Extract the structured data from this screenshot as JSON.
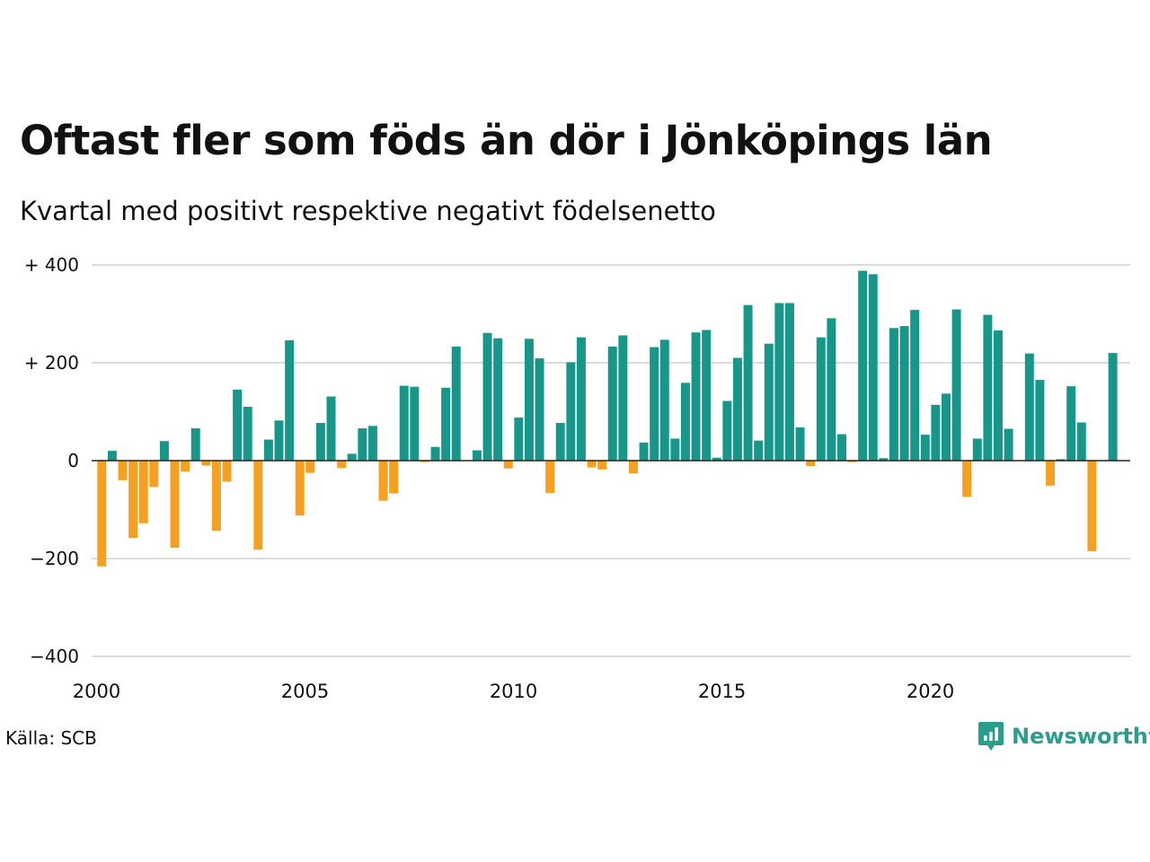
{
  "title": "Oftast fler som föds än dör i Jönköpings län",
  "subtitle": "Kvartal med positivt respektive negativt födelsenetto",
  "source": "Källa: SCB",
  "brand": {
    "name": "Newsworthy",
    "icon": "newsworthy-logo-icon",
    "color": "#2a9d8f"
  },
  "colors": {
    "positive": "#17978a",
    "negative": "#f5a020",
    "grid": "#dcdcdc",
    "zero": "#222222"
  },
  "chart_data": {
    "type": "bar",
    "title": "Oftast fler som föds än dör i Jönköpings län",
    "subtitle": "Kvartal med positivt respektive negativt födelsenetto",
    "xlabel": "",
    "ylabel": "",
    "ylim": [
      -400,
      400
    ],
    "xlim": [
      2000,
      2024.75
    ],
    "yticks": [
      400,
      200,
      0,
      -200,
      -400
    ],
    "ytick_labels": [
      "+ 400",
      "+ 200",
      "0",
      "−200",
      "−400"
    ],
    "xticks": [
      2000,
      2005,
      2010,
      2015,
      2020
    ],
    "xtick_labels": [
      "2000",
      "2005",
      "2010",
      "2015",
      "2020"
    ],
    "grid": true,
    "legend": "none",
    "categories": [
      "2000 Q1",
      "2000 Q2",
      "2000 Q3",
      "2000 Q4",
      "2001 Q1",
      "2001 Q2",
      "2001 Q3",
      "2001 Q4",
      "2002 Q1",
      "2002 Q2",
      "2002 Q3",
      "2002 Q4",
      "2003 Q1",
      "2003 Q2",
      "2003 Q3",
      "2003 Q4",
      "2004 Q1",
      "2004 Q2",
      "2004 Q3",
      "2004 Q4",
      "2005 Q1",
      "2005 Q2",
      "2005 Q3",
      "2005 Q4",
      "2006 Q1",
      "2006 Q2",
      "2006 Q3",
      "2006 Q4",
      "2007 Q1",
      "2007 Q2",
      "2007 Q3",
      "2007 Q4",
      "2008 Q1",
      "2008 Q2",
      "2008 Q3",
      "2008 Q4",
      "2009 Q1",
      "2009 Q2",
      "2009 Q3",
      "2009 Q4",
      "2010 Q1",
      "2010 Q2",
      "2010 Q3",
      "2010 Q4",
      "2011 Q1",
      "2011 Q2",
      "2011 Q3",
      "2011 Q4",
      "2012 Q1",
      "2012 Q2",
      "2012 Q3",
      "2012 Q4",
      "2013 Q1",
      "2013 Q2",
      "2013 Q3",
      "2013 Q4",
      "2014 Q1",
      "2014 Q2",
      "2014 Q3",
      "2014 Q4",
      "2015 Q1",
      "2015 Q2",
      "2015 Q3",
      "2015 Q4",
      "2016 Q1",
      "2016 Q2",
      "2016 Q3",
      "2016 Q4",
      "2017 Q1",
      "2017 Q2",
      "2017 Q3",
      "2017 Q4",
      "2018 Q1",
      "2018 Q2",
      "2018 Q3",
      "2018 Q4",
      "2019 Q1",
      "2019 Q2",
      "2019 Q3",
      "2019 Q4",
      "2020 Q1",
      "2020 Q2",
      "2020 Q3",
      "2020 Q4",
      "2021 Q1",
      "2021 Q2",
      "2021 Q3",
      "2021 Q4",
      "2022 Q1",
      "2022 Q2",
      "2022 Q3",
      "2022 Q4",
      "2023 Q1",
      "2023 Q2",
      "2023 Q3",
      "2023 Q4",
      "2024 Q1",
      "2024 Q2",
      "2024 Q3",
      "2024 Q4"
    ],
    "values": [
      -216,
      20,
      -40,
      -158,
      -128,
      -54,
      40,
      -178,
      -22,
      66,
      -10,
      -143,
      -43,
      145,
      110,
      -182,
      43,
      82,
      246,
      -112,
      -25,
      77,
      131,
      -15,
      14,
      66,
      71,
      -82,
      -67,
      153,
      151,
      -3,
      28,
      149,
      233,
      0,
      21,
      261,
      250,
      -16,
      88,
      249,
      209,
      -66,
      77,
      201,
      252,
      -14,
      -18,
      233,
      256,
      -26,
      37,
      232,
      247,
      45,
      159,
      262,
      267,
      6,
      122,
      210,
      318,
      41,
      239,
      322,
      322,
      68,
      -11,
      252,
      291,
      54,
      -3,
      388,
      381,
      5,
      271,
      275,
      308,
      53,
      114,
      137,
      309,
      -74,
      45,
      298,
      266,
      65,
      0,
      219,
      165,
      -51,
      3,
      152,
      78,
      -185,
      0,
      220,
      0,
      0
    ]
  }
}
